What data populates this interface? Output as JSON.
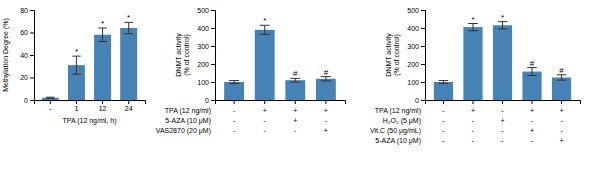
{
  "chart_data": [
    {
      "type": "bar",
      "categories": [
        "-",
        "1",
        "12",
        "24"
      ],
      "values": [
        2,
        31,
        58,
        64
      ],
      "errors": [
        0.5,
        8,
        6,
        5
      ],
      "ylabel": "Methylation Degree (%)",
      "xlabel": "TPA (12 ng/ml, h)",
      "ylim": [
        0,
        80
      ],
      "yticks": [
        0,
        20,
        40,
        60,
        80
      ],
      "annotations": [
        {
          "at": 1,
          "text": "*"
        },
        {
          "at": 2,
          "text": "*"
        },
        {
          "at": 3,
          "text": "*"
        }
      ]
    },
    {
      "type": "bar",
      "categories": [
        null,
        null,
        null,
        null
      ],
      "values": [
        100,
        390,
        110,
        118
      ],
      "errors": [
        8,
        25,
        10,
        12
      ],
      "ylabel": "DNMT activity\n(% of control)",
      "ylim": [
        0,
        500
      ],
      "yticks": [
        0,
        100,
        200,
        300,
        400,
        500
      ],
      "tick_labels": "y",
      "annotations": [
        {
          "at": 1,
          "text": "*"
        },
        {
          "at": 2,
          "text": "#"
        },
        {
          "at": 3,
          "text": "#"
        }
      ],
      "rows": [
        {
          "label": "TPA (12 ng/ml)",
          "signs": [
            "-",
            "+",
            "+",
            "+"
          ]
        },
        {
          "label": "5-AZA (10 μM)",
          "signs": [
            "-",
            "-",
            "+",
            "-"
          ]
        },
        {
          "label": "VAS2870 (20 μM)",
          "signs": [
            "-",
            "-",
            "-",
            "+"
          ]
        }
      ]
    },
    {
      "type": "bar",
      "categories": [
        null,
        null,
        null,
        null,
        null
      ],
      "values": [
        100,
        405,
        415,
        158,
        125
      ],
      "errors": [
        8,
        20,
        20,
        22,
        15
      ],
      "ylabel": "DNMT activity\n(% of control)",
      "ylim": [
        0,
        500
      ],
      "yticks": [
        0,
        100,
        200,
        300,
        400,
        500
      ],
      "tick_labels": "y",
      "annotations": [
        {
          "at": 1,
          "text": "*"
        },
        {
          "at": 2,
          "text": "*"
        },
        {
          "at": 3,
          "text": "#"
        },
        {
          "at": 4,
          "text": "#"
        }
      ],
      "rows": [
        {
          "label": "TPA (12 ng/ml)",
          "signs": [
            "-",
            "+",
            "-",
            "+",
            "+"
          ]
        },
        {
          "label": "H₂O₂ (5 μM)",
          "signs": [
            "-",
            "-",
            "+",
            "-",
            "-"
          ]
        },
        {
          "label": "Vit.C (50 μg/mL)",
          "signs": [
            "-",
            "-",
            "-",
            "+",
            "-"
          ]
        },
        {
          "label": "5-AZA (10 μM)",
          "signs": [
            "-",
            "-",
            "-",
            "-",
            "+"
          ]
        }
      ]
    }
  ]
}
